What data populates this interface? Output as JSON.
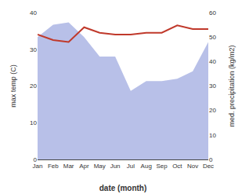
{
  "chart_data": {
    "type": "line",
    "categories": [
      "Jan",
      "Feb",
      "Mar",
      "Apr",
      "May",
      "Jun",
      "Jul",
      "Aug",
      "Sep",
      "Oct",
      "Nov",
      "Dec"
    ],
    "series": [
      {
        "type": "area",
        "color": "#b8c0e8",
        "axis": "y2",
        "values": [
          50,
          55,
          56,
          50,
          42,
          42,
          28,
          32,
          32,
          33,
          36,
          48
        ]
      },
      {
        "type": "line",
        "color": "#c0392b",
        "values": [
          34,
          32.5,
          32,
          36,
          34.5,
          34,
          34,
          34.5,
          34.5,
          36.5,
          35.5,
          35.5
        ]
      }
    ],
    "xlabel": "date (month)",
    "ylabel": "max temp (C)",
    "y2label": "med. precipitation (kg/m2)",
    "ylim": [
      0,
      40
    ],
    "yticks": [
      0,
      10,
      20,
      30,
      40
    ],
    "y2lim": [
      0,
      60
    ],
    "y2ticks": [
      0,
      10,
      20,
      30,
      40,
      50,
      60
    ],
    "grid": false
  }
}
